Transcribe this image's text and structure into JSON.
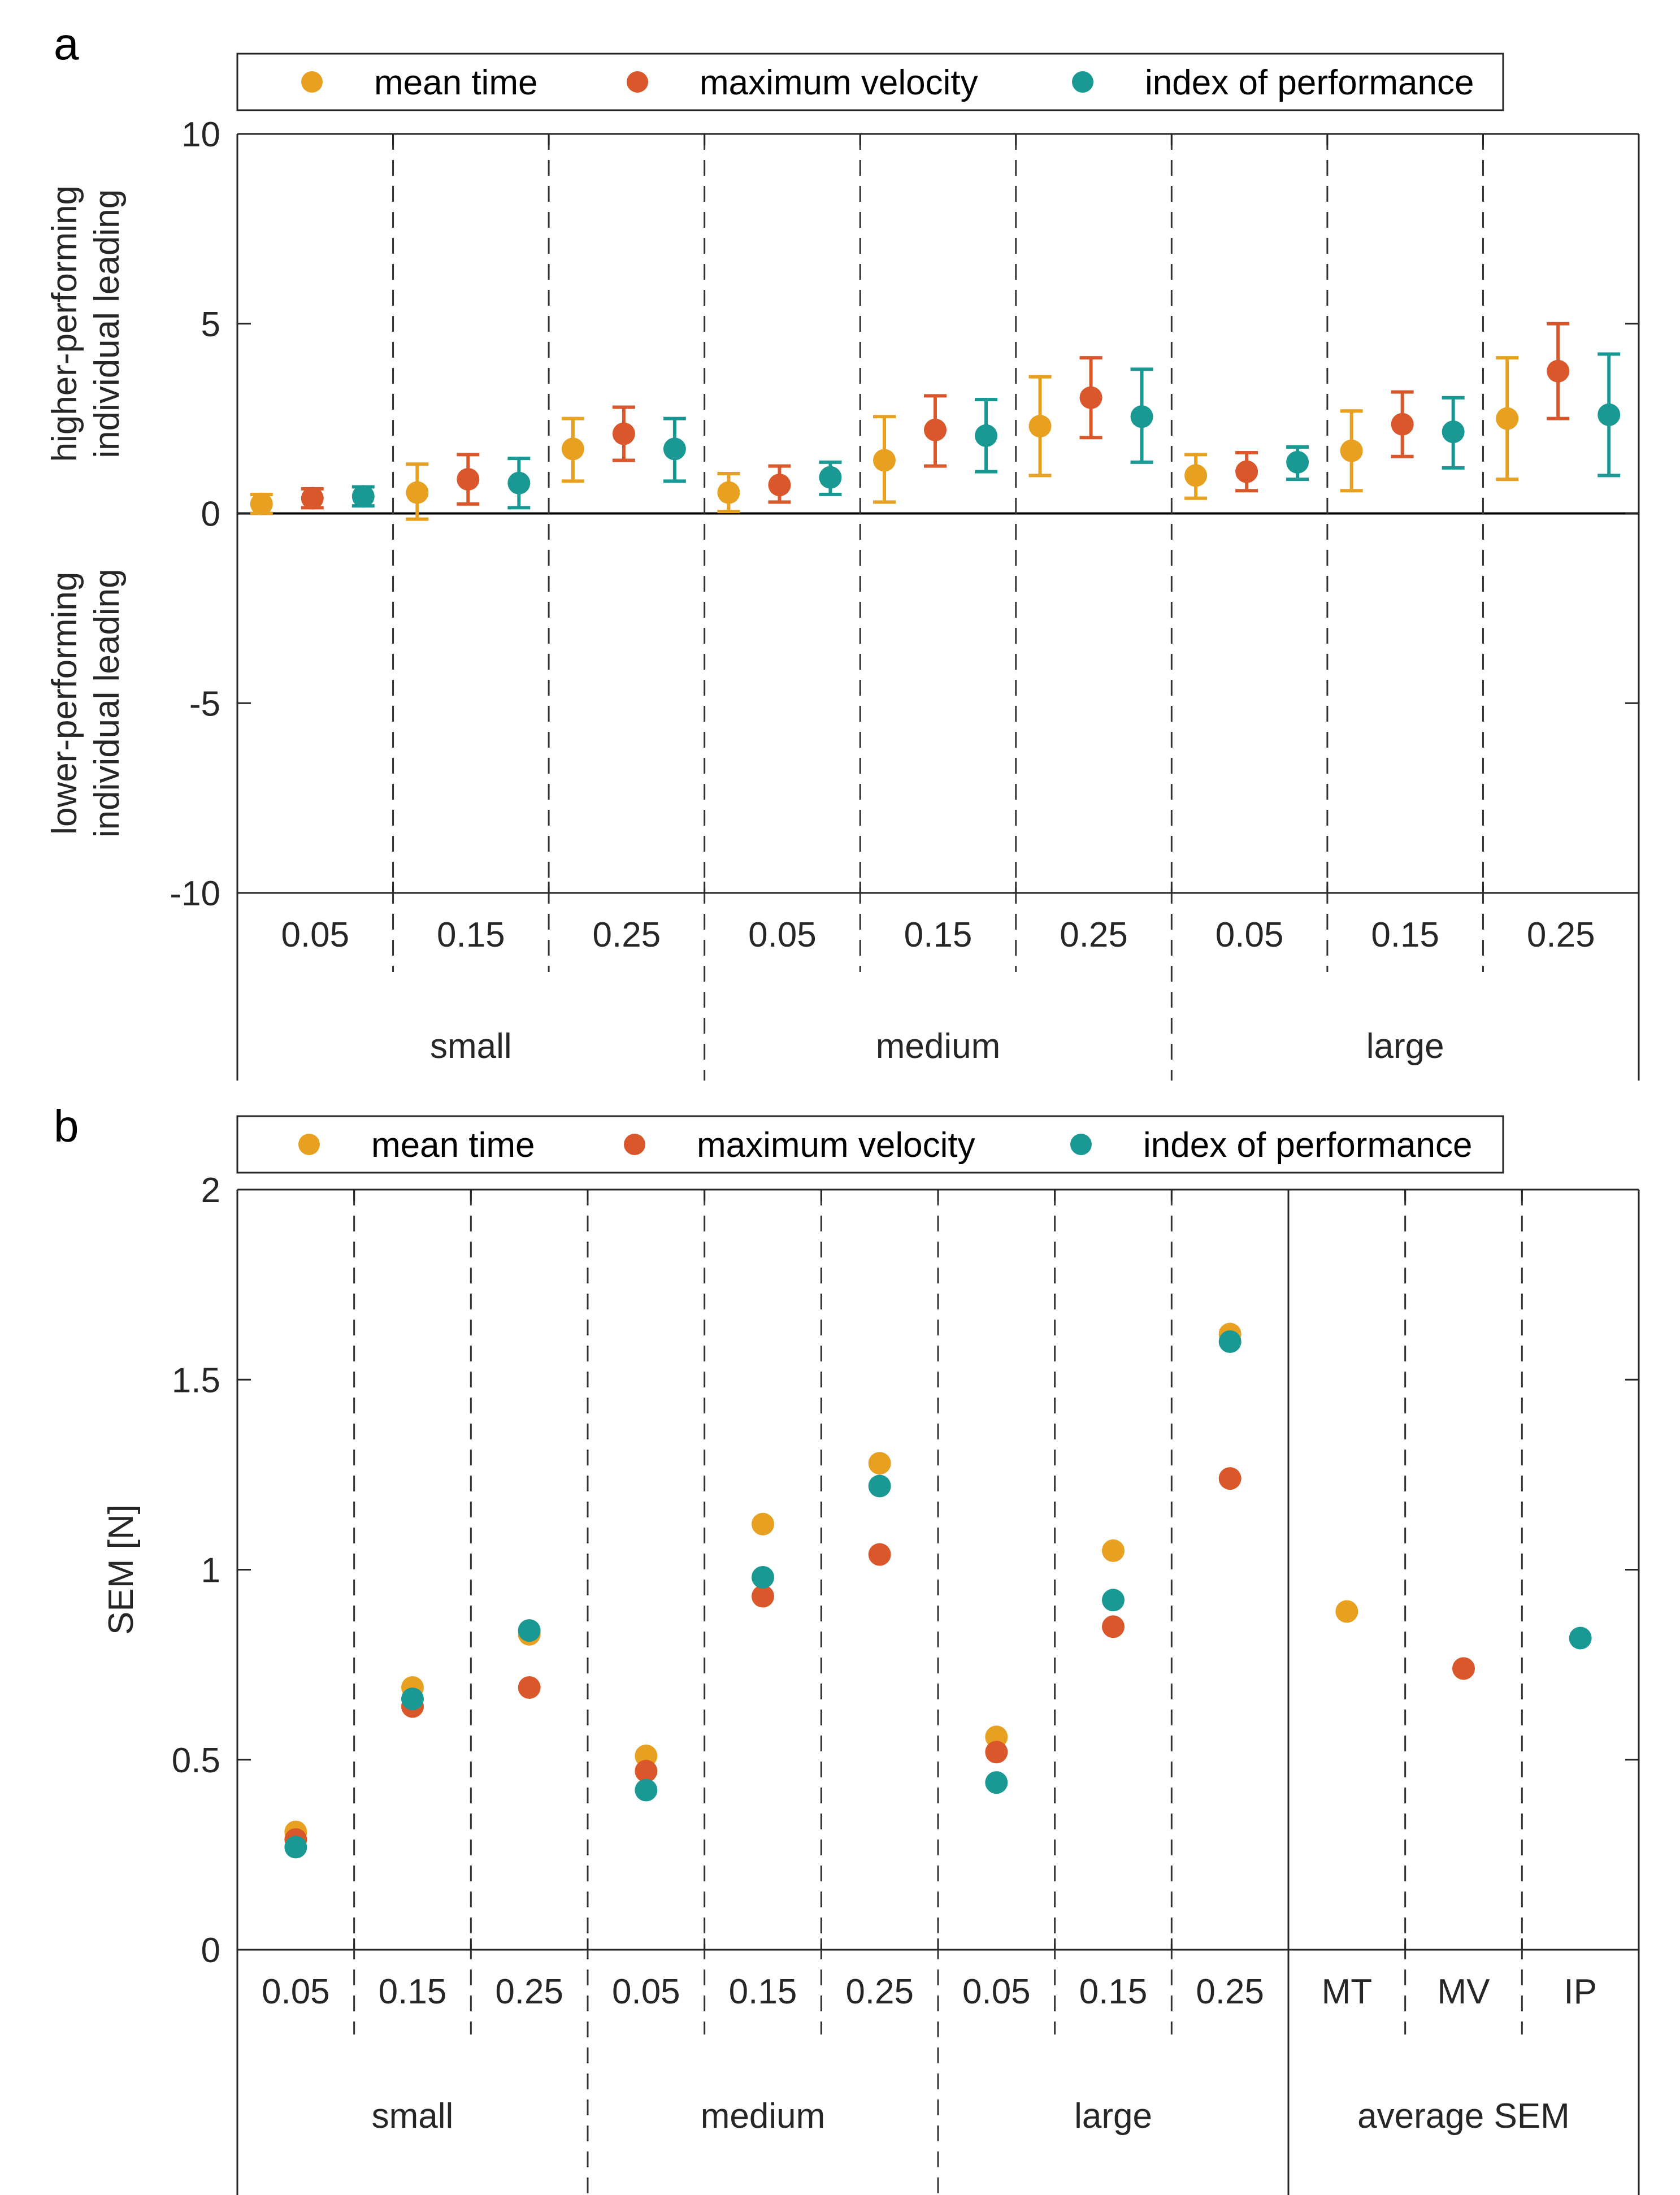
{
  "colors": {
    "mean_time": "#E8A020",
    "maximum_velocity": "#D9572A",
    "index_of_performance": "#1A9994"
  },
  "legend": [
    "mean time",
    "maximum velocity",
    "index of performance"
  ],
  "chart_data": [
    {
      "panel": "a",
      "type": "scatter",
      "error_bars": true,
      "ylabel_top": [
        "higher-performing",
        "individual leading"
      ],
      "ylabel_bottom": [
        "lower-performing",
        "individual leading"
      ],
      "ylim": [
        -10,
        10
      ],
      "yticks": [
        10,
        5,
        0,
        -5,
        -10
      ],
      "ytick_labels": [
        "10",
        "5",
        "0",
        "-5",
        "-10"
      ],
      "groups": [
        {
          "label": "small",
          "conditions": [
            "0.05",
            "0.15",
            "0.25"
          ]
        },
        {
          "label": "medium",
          "conditions": [
            "0.05",
            "0.15",
            "0.25"
          ]
        },
        {
          "label": "large",
          "conditions": [
            "0.05",
            "0.15",
            "0.25"
          ]
        }
      ],
      "series": [
        {
          "name": "mean time",
          "key": "mean_time",
          "values": [
            0.25,
            0.55,
            1.7,
            0.55,
            1.4,
            2.3,
            1.0,
            1.65,
            2.5
          ],
          "lower": [
            0.0,
            -0.15,
            0.85,
            0.05,
            0.3,
            1.0,
            0.4,
            0.6,
            0.9
          ],
          "upper": [
            0.5,
            1.3,
            2.5,
            1.05,
            2.55,
            3.6,
            1.55,
            2.7,
            4.1
          ]
        },
        {
          "name": "maximum velocity",
          "key": "maximum_velocity",
          "values": [
            0.4,
            0.9,
            2.1,
            0.75,
            2.2,
            3.05,
            1.1,
            2.35,
            3.75
          ],
          "lower": [
            0.15,
            0.25,
            1.4,
            0.3,
            1.25,
            2.0,
            0.6,
            1.5,
            2.5
          ],
          "upper": [
            0.65,
            1.55,
            2.8,
            1.25,
            3.1,
            4.1,
            1.6,
            3.2,
            5.0
          ]
        },
        {
          "name": "index of performance",
          "key": "index_of_performance",
          "values": [
            0.45,
            0.8,
            1.7,
            0.95,
            2.05,
            2.55,
            1.35,
            2.15,
            2.6
          ],
          "lower": [
            0.2,
            0.15,
            0.85,
            0.5,
            1.1,
            1.35,
            0.9,
            1.2,
            1.0
          ],
          "upper": [
            0.7,
            1.45,
            2.5,
            1.35,
            3.0,
            3.8,
            1.75,
            3.05,
            4.2
          ]
        }
      ]
    },
    {
      "panel": "b",
      "type": "scatter",
      "ylabel": "SEM [N]",
      "ylim": [
        0,
        2
      ],
      "yticks": [
        2,
        1.5,
        1,
        0.5,
        0
      ],
      "ytick_labels": [
        "2",
        "1.5",
        "1",
        "0.5",
        "0"
      ],
      "groups": [
        {
          "label": "small",
          "conditions": [
            "0.05",
            "0.15",
            "0.25"
          ]
        },
        {
          "label": "medium",
          "conditions": [
            "0.05",
            "0.15",
            "0.25"
          ]
        },
        {
          "label": "large",
          "conditions": [
            "0.05",
            "0.15",
            "0.25"
          ]
        },
        {
          "label": "average SEM",
          "conditions": [
            "MT",
            "MV",
            "IP"
          ]
        }
      ],
      "series": [
        {
          "name": "mean time",
          "key": "mean_time",
          "values": [
            0.31,
            0.69,
            0.83,
            0.51,
            1.12,
            1.28,
            0.56,
            1.05,
            1.62,
            0.89,
            null,
            null
          ]
        },
        {
          "name": "maximum velocity",
          "key": "maximum_velocity",
          "values": [
            0.29,
            0.64,
            0.69,
            0.47,
            0.93,
            1.04,
            0.52,
            0.85,
            1.24,
            null,
            0.74,
            null
          ]
        },
        {
          "name": "index of performance",
          "key": "index_of_performance",
          "values": [
            0.27,
            0.66,
            0.84,
            0.42,
            0.98,
            1.22,
            0.44,
            0.92,
            1.6,
            null,
            null,
            0.82
          ]
        }
      ]
    }
  ]
}
